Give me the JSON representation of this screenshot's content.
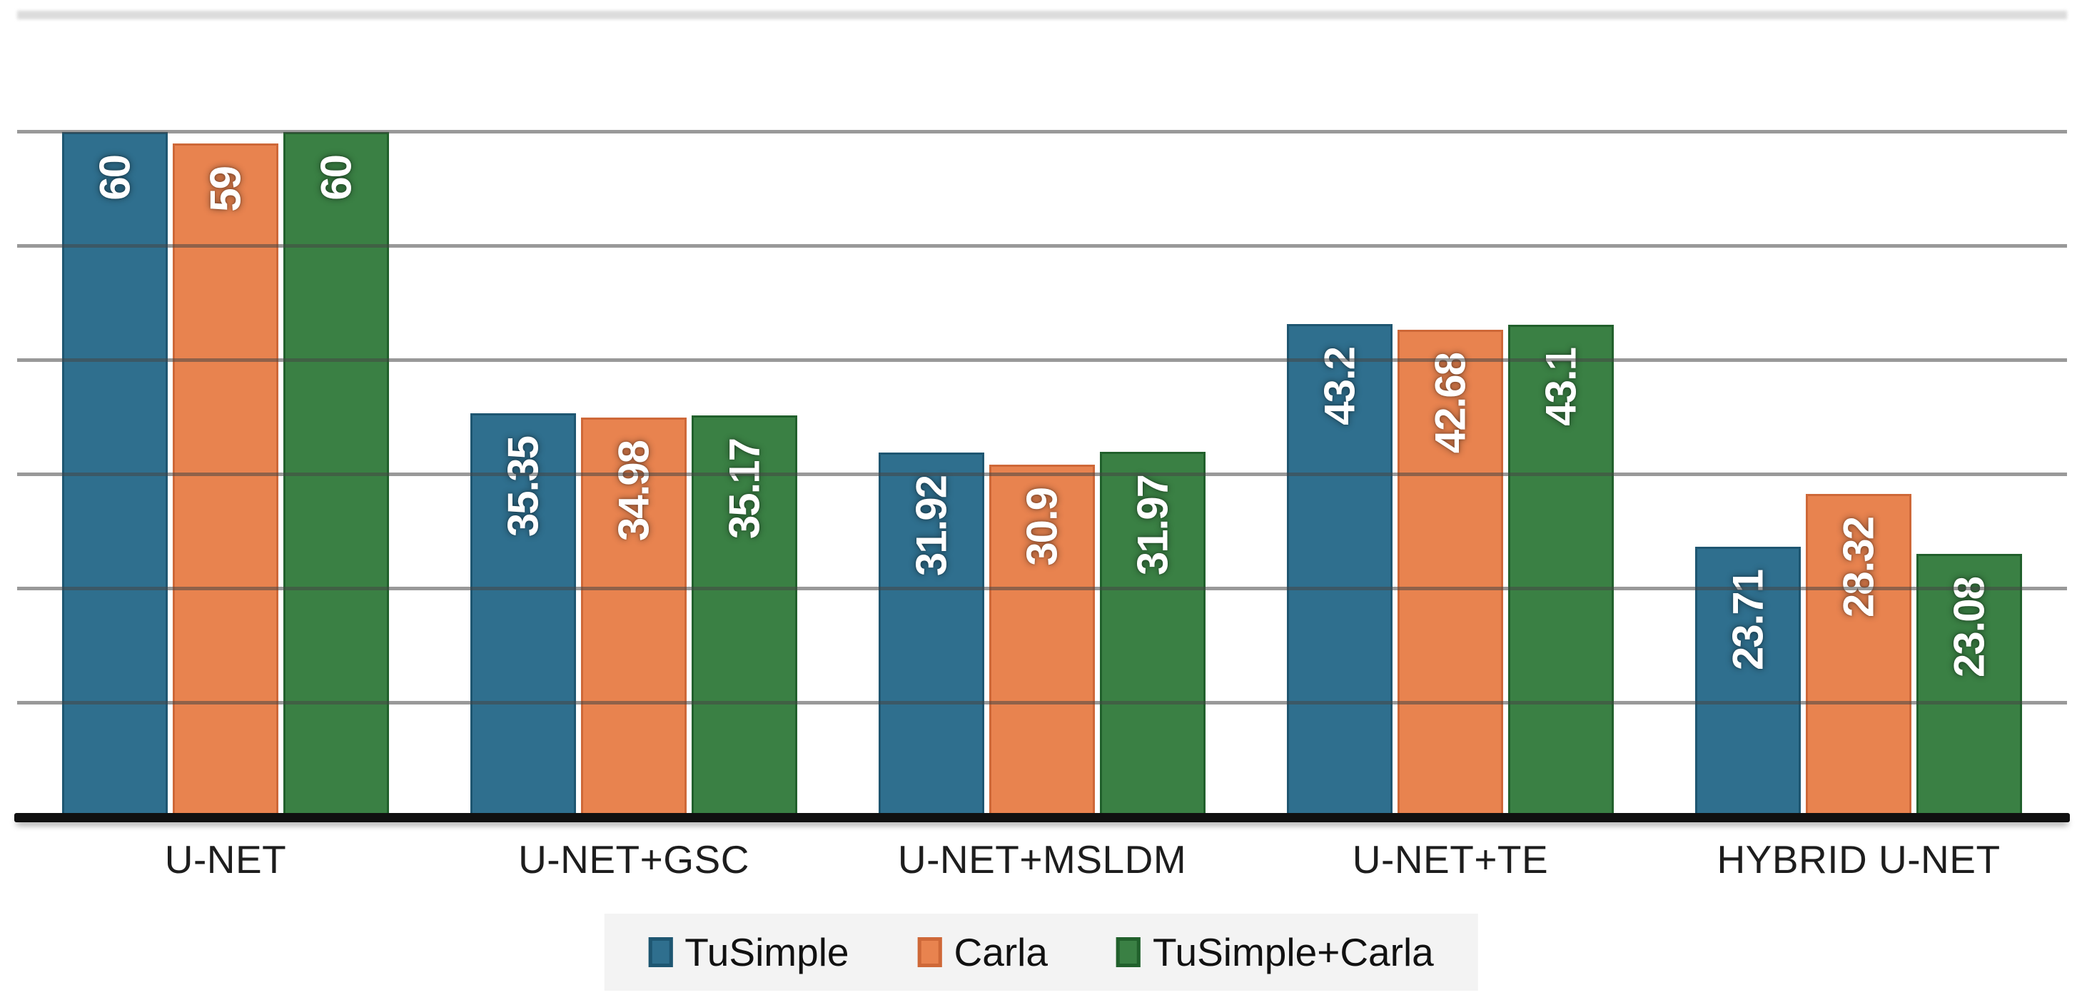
{
  "chart_data": {
    "type": "bar",
    "title": "",
    "xlabel": "",
    "ylabel": "",
    "categories": [
      "U-NET",
      "U-NET+GSC",
      "U-NET+MSLDM",
      "U-NET+TE",
      "HYBRID U-NET"
    ],
    "series": [
      {
        "name": "TuSimple",
        "color": "#2F6F8E",
        "border_color": "#1E5671",
        "values": [
          60,
          35.35,
          31.92,
          43.2,
          23.71
        ],
        "labels": [
          "60",
          "35.35",
          "31.92",
          "43.2",
          "23.71"
        ]
      },
      {
        "name": "Carla",
        "color": "#E8834F",
        "border_color": "#CE6838",
        "values": [
          59,
          34.98,
          30.9,
          42.68,
          28.32
        ],
        "labels": [
          "59",
          "34.98",
          "30.9",
          "42.68",
          "28.32"
        ]
      },
      {
        "name": "TuSimple+Carla",
        "color": "#3A8044",
        "border_color": "#21602C",
        "values": [
          60,
          35.17,
          31.97,
          43.1,
          23.08
        ],
        "labels": [
          "60",
          "35.17",
          "31.97",
          "43.1",
          "23.08"
        ]
      }
    ],
    "ylim": [
      0,
      70
    ],
    "gridline_step": 10,
    "grid": true,
    "y_tick_labels_visible": false,
    "data_labels": "inside-end, rotated 90deg reading bottom-to-top, white bold",
    "legend_position": "bottom-center",
    "axis_line_color": "#101010",
    "gridline_color": "#6e6e6e",
    "background_color": "#ffffff",
    "legend_background_color": "#f3f3f3"
  }
}
